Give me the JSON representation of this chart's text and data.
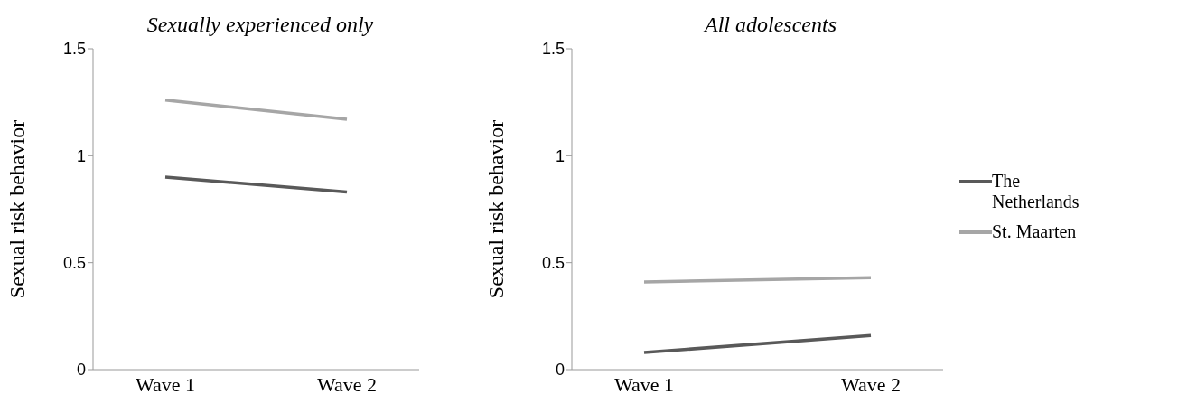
{
  "chart_data": [
    {
      "type": "line",
      "title": "Sexually experienced only",
      "ylabel": "Sexual risk behavior",
      "categories": [
        "Wave 1",
        "Wave 2"
      ],
      "ylim": [
        0,
        1.5
      ],
      "yticks": [
        0,
        0.5,
        1,
        1.5
      ],
      "grid": false,
      "legend": false,
      "marker": "none",
      "line_style": "solid",
      "series": [
        {
          "color": "#595959",
          "values": [
            0.9,
            0.83
          ]
        },
        {
          "color": "#a6a6a6",
          "values": [
            1.26,
            1.17
          ]
        }
      ]
    },
    {
      "type": "line",
      "title": "All adolescents",
      "ylabel": "Sexual risk behavior",
      "categories": [
        "Wave 1",
        "Wave 2"
      ],
      "ylim": [
        0,
        1.5
      ],
      "yticks": [
        0,
        0.5,
        1,
        1.5
      ],
      "grid": false,
      "legend": "right",
      "marker": "none",
      "line_style": "solid",
      "series": [
        {
          "name": "The Netherlands",
          "color": "#595959",
          "values": [
            0.08,
            0.16
          ]
        },
        {
          "name": "St. Maarten",
          "color": "#a6a6a6",
          "values": [
            0.41,
            0.43
          ]
        }
      ]
    }
  ]
}
